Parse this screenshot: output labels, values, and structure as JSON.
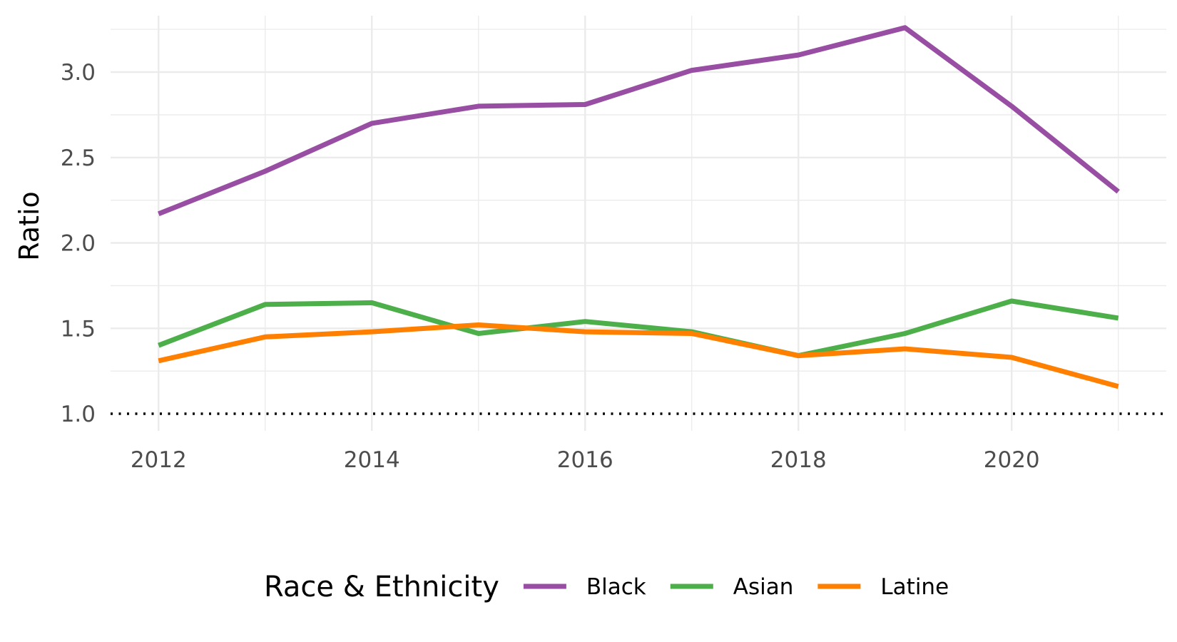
{
  "chart_data": {
    "type": "line",
    "ylabel": "Ratio",
    "xlabel": "",
    "x": [
      2012,
      2013,
      2014,
      2015,
      2016,
      2017,
      2018,
      2019,
      2020,
      2021
    ],
    "x_ticks": [
      "2012",
      "2014",
      "2016",
      "2018",
      "2020"
    ],
    "y_ticks": [
      "1.0",
      "1.5",
      "2.0",
      "2.5",
      "3.0"
    ],
    "xlim": [
      2011.55,
      2021.45
    ],
    "ylim": [
      0.9,
      3.33
    ],
    "grid": true,
    "reference_line": {
      "y": 1.0,
      "style": "dotted",
      "color": "#000000"
    },
    "legend": {
      "title": "Race & Ethnicity",
      "position": "bottom"
    },
    "series": [
      {
        "name": "Black",
        "color": "#984EA3",
        "values": [
          2.17,
          2.42,
          2.7,
          2.8,
          2.81,
          3.01,
          3.1,
          3.26,
          2.8,
          2.3
        ]
      },
      {
        "name": "Asian",
        "color": "#4DAF4A",
        "values": [
          1.4,
          1.64,
          1.65,
          1.47,
          1.54,
          1.48,
          1.34,
          1.47,
          1.66,
          1.56
        ]
      },
      {
        "name": "Latine",
        "color": "#FF7F00",
        "values": [
          1.31,
          1.45,
          1.48,
          1.52,
          1.48,
          1.47,
          1.34,
          1.38,
          1.33,
          1.16
        ]
      }
    ]
  }
}
